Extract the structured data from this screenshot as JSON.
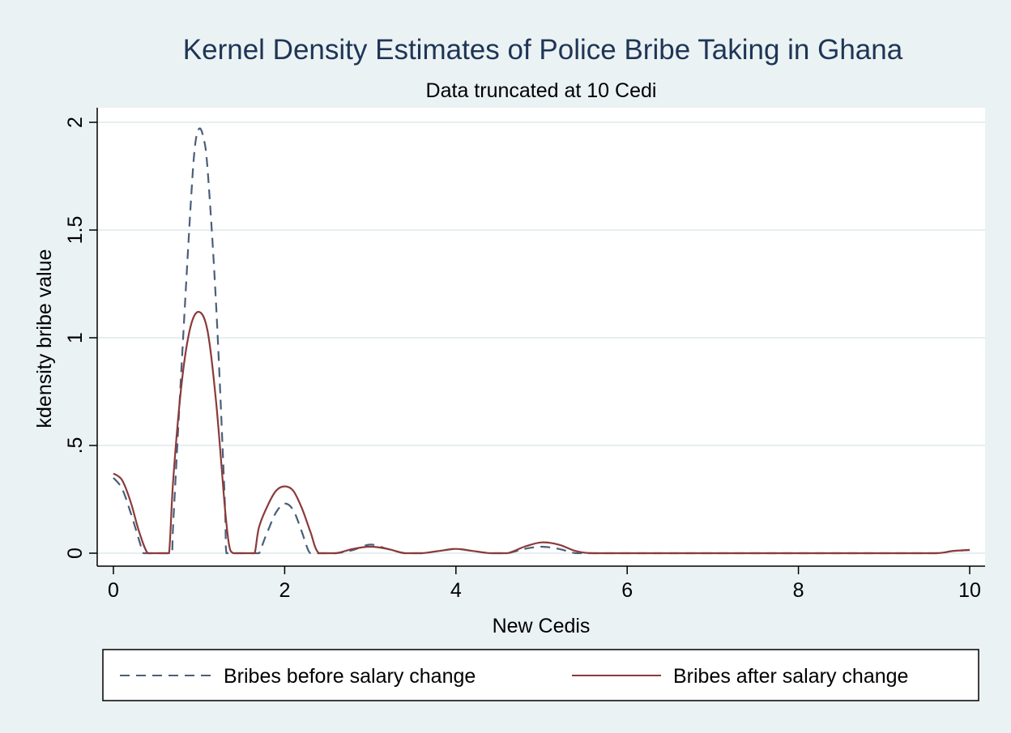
{
  "chart_data": {
    "type": "line",
    "title": "Kernel Density Estimates of Police Bribe Taking in Ghana",
    "subtitle": "Data truncated at 10 Cedi",
    "xlabel": "New Cedis",
    "ylabel": "kdensity bribe value",
    "xlim": [
      0,
      10
    ],
    "ylim": [
      0,
      2
    ],
    "x_ticks": [
      {
        "value": 0,
        "label": "0"
      },
      {
        "value": 2,
        "label": "2"
      },
      {
        "value": 4,
        "label": "4"
      },
      {
        "value": 6,
        "label": "6"
      },
      {
        "value": 8,
        "label": "8"
      },
      {
        "value": 10,
        "label": "10"
      }
    ],
    "y_ticks": [
      {
        "value": 0,
        "label": "0"
      },
      {
        "value": 0.5,
        "label": ".5"
      },
      {
        "value": 1,
        "label": "1"
      },
      {
        "value": 1.5,
        "label": "1.5"
      },
      {
        "value": 2,
        "label": "2"
      }
    ],
    "grid": true,
    "legend_position": "bottom",
    "series": [
      {
        "name": "Bribes before salary change",
        "style": "dashed",
        "color": "#4a5f7a",
        "x": [
          0,
          0.1,
          0.2,
          0.3,
          0.35,
          0.4,
          0.5,
          0.6,
          0.68,
          0.7,
          0.8,
          0.9,
          0.95,
          1.0,
          1.05,
          1.1,
          1.2,
          1.3,
          1.32,
          1.4,
          1.6,
          1.7,
          1.75,
          1.8,
          1.9,
          2.0,
          2.1,
          2.2,
          2.25,
          2.3,
          2.4,
          2.6,
          2.8,
          3.0,
          3.2,
          3.4,
          3.6,
          3.8,
          4.0,
          4.2,
          4.4,
          4.6,
          4.8,
          5.0,
          5.2,
          5.4,
          5.6,
          6,
          7,
          8,
          9,
          9.6,
          9.8,
          10
        ],
        "y": [
          0.35,
          0.3,
          0.19,
          0.06,
          0.0,
          0.0,
          0.0,
          0.0,
          0.0,
          0.15,
          0.9,
          1.6,
          1.88,
          1.97,
          1.93,
          1.78,
          1.15,
          0.25,
          0.0,
          0.0,
          0.0,
          0.0,
          0.05,
          0.1,
          0.19,
          0.23,
          0.2,
          0.1,
          0.04,
          0.0,
          0.0,
          0.0,
          0.015,
          0.04,
          0.02,
          0.0,
          0.0,
          0.01,
          0.02,
          0.01,
          0.0,
          0.0,
          0.02,
          0.03,
          0.02,
          0.0,
          0.0,
          0.0,
          0.0,
          0.0,
          0.0,
          0.0,
          0.01,
          0.015
        ]
      },
      {
        "name": "Bribes after salary change",
        "style": "solid",
        "color": "#8b3a3a",
        "x": [
          0,
          0.1,
          0.2,
          0.3,
          0.4,
          0.5,
          0.6,
          0.65,
          0.7,
          0.8,
          0.9,
          1.0,
          1.1,
          1.2,
          1.3,
          1.35,
          1.4,
          1.5,
          1.6,
          1.65,
          1.7,
          1.8,
          1.9,
          2.0,
          2.1,
          2.2,
          2.3,
          2.4,
          2.6,
          2.8,
          3.0,
          3.2,
          3.4,
          3.6,
          3.8,
          4.0,
          4.2,
          4.4,
          4.6,
          4.8,
          5.0,
          5.2,
          5.4,
          5.6,
          6,
          7,
          8,
          9,
          9.6,
          9.8,
          10
        ],
        "y": [
          0.37,
          0.34,
          0.24,
          0.1,
          0.0,
          0.0,
          0.0,
          0.0,
          0.35,
          0.8,
          1.05,
          1.12,
          1.03,
          0.7,
          0.22,
          0.04,
          0.0,
          0.0,
          0.0,
          0.0,
          0.12,
          0.22,
          0.29,
          0.31,
          0.29,
          0.21,
          0.1,
          0.0,
          0.0,
          0.02,
          0.03,
          0.02,
          0.0,
          0.0,
          0.01,
          0.02,
          0.01,
          0.0,
          0.0,
          0.03,
          0.05,
          0.04,
          0.01,
          0.0,
          0.0,
          0.0,
          0.0,
          0.0,
          0.0,
          0.01,
          0.015
        ]
      }
    ]
  }
}
